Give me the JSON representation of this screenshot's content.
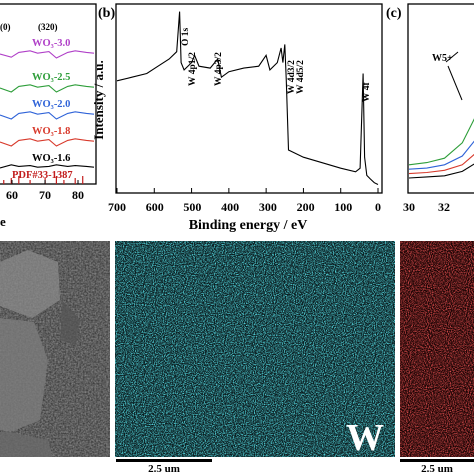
{
  "colors": {
    "wo3_30": "#b040c8",
    "wo3_25": "#2e9e3a",
    "wo3_20": "#2f63d8",
    "wo3_18": "#d83a2c",
    "wo3_16": "#000000",
    "pdf": "#c21e1e",
    "xps_line": "#000000",
    "map_w": "#19c6d6",
    "map_o": "#e01818",
    "sem_bg": "#3a3a3a"
  },
  "panel_a": {
    "xaxis": {
      "tick_labels": [
        "60",
        "70",
        "80"
      ],
      "partial_label": "e"
    },
    "peak_labels": [
      "(0)",
      "(320)"
    ],
    "series_labels": [
      {
        "text": "WO₃-3.0",
        "color_key": "wo3_30"
      },
      {
        "text": "WO₃-2.5",
        "color_key": "wo3_25"
      },
      {
        "text": "WO₃-2.0",
        "color_key": "wo3_20"
      },
      {
        "text": "WO₃-1.8",
        "color_key": "wo3_18"
      },
      {
        "text": "WO₃-1.6",
        "color_key": "wo3_16"
      }
    ],
    "pdf_label": "PDF#33-1387"
  },
  "panel_b": {
    "letter": "(b)",
    "ylabel": "Intensity / a.u.",
    "xlabel": "Binding energy / eV",
    "tick_labels": [
      "700",
      "600",
      "500",
      "400",
      "300",
      "200",
      "100",
      "0"
    ],
    "peak_labels": [
      "O 1s",
      "W 4p1/2",
      "W 4p3/2",
      "W 4d3/2",
      "W 4d5/2",
      "W 4f"
    ]
  },
  "panel_c": {
    "letter": "(c)",
    "tick_labels": [
      "30",
      "32"
    ],
    "annotation": "W5+"
  },
  "bottom": {
    "map_label": "W",
    "scale_label_1": "2.5 um",
    "scale_label_2": "2.5 um"
  },
  "chart_data": [
    {
      "type": "line",
      "title": "",
      "xlabel": "",
      "ylabel": "",
      "xlim": [
        55,
        80
      ],
      "series": [
        {
          "name": "WO₃-3.0",
          "x": [
            55,
            58,
            60,
            63,
            65,
            68,
            70,
            73,
            75,
            78,
            80
          ],
          "y": [
            5,
            5.6,
            5.2,
            5.4,
            5.1,
            5.3,
            5.5,
            5.2,
            5.4,
            5.2,
            5.1
          ]
        },
        {
          "name": "WO₃-2.5",
          "x": [
            55,
            58,
            60,
            63,
            65,
            68,
            70,
            73,
            75,
            78,
            80
          ],
          "y": [
            4,
            4.5,
            4.2,
            4.4,
            4.1,
            4.3,
            4.5,
            4.2,
            4.4,
            4.2,
            4.1
          ]
        },
        {
          "name": "WO₃-2.0",
          "x": [
            55,
            58,
            60,
            63,
            65,
            68,
            70,
            73,
            75,
            78,
            80
          ],
          "y": [
            3,
            3.5,
            3.2,
            3.4,
            3.1,
            3.3,
            3.5,
            3.2,
            3.4,
            3.2,
            3.1
          ]
        },
        {
          "name": "WO₃-1.8",
          "x": [
            55,
            58,
            60,
            63,
            65,
            68,
            70,
            73,
            75,
            78,
            80
          ],
          "y": [
            2,
            2.5,
            2.2,
            2.4,
            2.1,
            2.3,
            2.5,
            2.2,
            2.4,
            2.2,
            2.1
          ]
        },
        {
          "name": "WO₃-1.6",
          "x": [
            55,
            58,
            60,
            63,
            65,
            68,
            70,
            73,
            75,
            78,
            80
          ],
          "y": [
            1,
            1.4,
            1.2,
            1.3,
            1.1,
            1.2,
            1.4,
            1.2,
            1.3,
            1.2,
            1.1
          ]
        }
      ],
      "reference_sticks": {
        "name": "PDF#33-1387",
        "x": [
          56,
          58,
          60,
          63,
          67,
          70,
          72,
          75,
          77
        ]
      }
    },
    {
      "type": "line",
      "title": "",
      "xlabel": "Binding energy / eV",
      "ylabel": "Intensity / a.u.",
      "xlim": [
        700,
        0
      ],
      "series": [
        {
          "name": "",
          "x": [
            700,
            660,
            620,
            590,
            560,
            540,
            532,
            528,
            520,
            500,
            492,
            480,
            450,
            430,
            420,
            400,
            360,
            320,
            300,
            290,
            270,
            260,
            255,
            250,
            246,
            240,
            200,
            150,
            100,
            60,
            48,
            40,
            36,
            30,
            20,
            10,
            0
          ],
          "y": [
            60,
            62,
            64,
            68,
            72,
            76,
            98,
            70,
            66,
            70,
            74,
            68,
            67,
            72,
            62,
            65,
            67,
            68,
            74,
            66,
            70,
            78,
            70,
            80,
            60,
            22,
            18,
            15,
            12,
            10,
            12,
            64,
            18,
            8,
            6,
            4,
            3
          ]
        }
      ],
      "peak_labels": [
        "O 1s",
        "W 4p1/2",
        "W 4p3/2",
        "W 4d3/2",
        "W 4d5/2",
        "W 4f"
      ]
    },
    {
      "type": "line",
      "title": "",
      "xlabel": "",
      "ylabel": "",
      "xlim": [
        30,
        34
      ],
      "series": [
        {
          "name": "",
          "x": [
            30,
            31,
            32,
            33,
            34
          ],
          "y": [
            1,
            1.05,
            1.1,
            1.3,
            1.8
          ]
        },
        {
          "name": "",
          "x": [
            30,
            31,
            32,
            33,
            34
          ],
          "y": [
            1.2,
            1.25,
            1.35,
            1.6,
            2.3
          ]
        },
        {
          "name": "",
          "x": [
            30,
            31,
            32,
            33,
            34
          ],
          "y": [
            1.4,
            1.45,
            1.6,
            2.0,
            3.0
          ]
        },
        {
          "name": "",
          "x": [
            30,
            31,
            32,
            33,
            34
          ],
          "y": [
            1.6,
            1.7,
            1.9,
            2.6,
            4.2
          ]
        }
      ]
    }
  ]
}
